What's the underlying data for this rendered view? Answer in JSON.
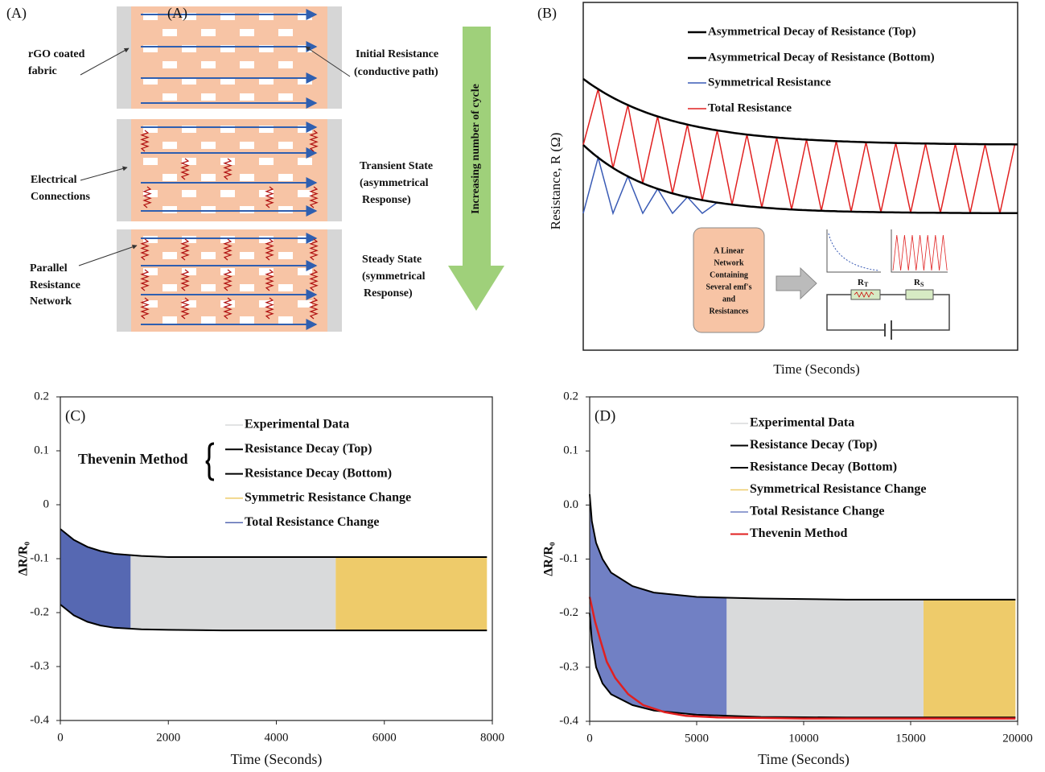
{
  "panel_a": {
    "labels": [
      "(A)",
      "(A)"
    ],
    "rgo": [
      "rGO coated",
      "fabric"
    ],
    "initial": [
      "Initial Resistance",
      "(conductive path)"
    ],
    "connections": [
      "Electrical",
      "Connections"
    ],
    "transient": [
      "Transient State",
      "(asymmetrical",
      "Response)"
    ],
    "parallel": [
      "Parallel",
      "Resistance",
      "Network"
    ],
    "steady": [
      "Steady State",
      "(symmetrical",
      "Response)"
    ],
    "arrow": "Increasing number of cycle"
  },
  "panel_b": {
    "label": "(B)",
    "legend": [
      "Asymmetrical Decay of Resistance (Top)",
      "Asymmetrical Decay of Resistance (Bottom)",
      "Symmetrical Resistance",
      "Total Resistance"
    ],
    "ylabel": "Resistance, R (Ω)",
    "xlabel": "Time (Seconds)",
    "box": [
      "A Linear",
      "Network",
      "Containing",
      "Several emf's",
      "and",
      "Resistances"
    ],
    "rt": [
      "R",
      "T"
    ],
    "rs": [
      "R",
      "S"
    ]
  },
  "chart_data": [
    {
      "type": "line",
      "panel_label": "(C)",
      "annotation": "Thevenin Method",
      "xlabel": "Time (Seconds)",
      "ylabel": "ΔR/R₀",
      "xlim": [
        0,
        8000
      ],
      "xticks": [
        0,
        2000,
        4000,
        6000,
        8000
      ],
      "ylim": [
        -0.4,
        0.2
      ],
      "yticks": [
        0.2,
        0.1,
        0,
        -0.1,
        -0.2,
        -0.3,
        -0.4
      ],
      "series": [
        {
          "name": "Experimental Data",
          "color": "#d9dadb",
          "style": "band",
          "x": [
            1300,
            5100
          ]
        },
        {
          "name": "Resistance Decay (Top)",
          "color": "#000000",
          "style": "line",
          "x": [
            0,
            250,
            500,
            750,
            1000,
            1500,
            2000,
            3000,
            5000,
            7900
          ],
          "values": [
            -0.045,
            -0.065,
            -0.078,
            -0.086,
            -0.091,
            -0.095,
            -0.097,
            -0.097,
            -0.097,
            -0.097
          ]
        },
        {
          "name": "Resistance Decay (Bottom)",
          "color": "#000000",
          "style": "line",
          "x": [
            0,
            250,
            500,
            750,
            1000,
            1500,
            2000,
            3000,
            5000,
            7900
          ],
          "values": [
            -0.185,
            -0.205,
            -0.217,
            -0.224,
            -0.228,
            -0.231,
            -0.232,
            -0.233,
            -0.233,
            -0.233
          ]
        },
        {
          "name": "Symmetric Resistance Change",
          "color": "#eecb6a",
          "style": "band",
          "x": [
            5100,
            7900
          ]
        },
        {
          "name": "Total Resistance Change",
          "color": "#5668b2",
          "style": "band",
          "x": [
            0,
            1300
          ]
        }
      ]
    },
    {
      "type": "line",
      "panel_label": "(D)",
      "xlabel": "Time (Seconds)",
      "ylabel": "ΔR/R₀",
      "xlim": [
        0,
        20000
      ],
      "xticks": [
        0,
        5000,
        10000,
        15000,
        20000
      ],
      "ylim": [
        -0.4,
        0.2
      ],
      "yticks": [
        0.2,
        0.1,
        {
          "value": 0,
          "label": "0.0"
        },
        -0.1,
        -0.2,
        -0.3,
        -0.4
      ],
      "series": [
        {
          "name": "Experimental Data",
          "color": "#d9dadb",
          "style": "band",
          "x": [
            6400,
            15600
          ]
        },
        {
          "name": "Resistance Decay (Top)",
          "color": "#000000",
          "style": "line",
          "x": [
            0,
            100,
            300,
            600,
            1000,
            2000,
            3000,
            5000,
            8000,
            12000,
            19900
          ],
          "values": [
            0.02,
            -0.03,
            -0.07,
            -0.1,
            -0.125,
            -0.15,
            -0.162,
            -0.17,
            -0.173,
            -0.175,
            -0.175
          ]
        },
        {
          "name": "Resistance Decay (Bottom)",
          "color": "#000000",
          "style": "line",
          "x": [
            0,
            100,
            300,
            600,
            1000,
            2000,
            3000,
            5000,
            8000,
            12000,
            19900
          ],
          "values": [
            -0.2,
            -0.25,
            -0.3,
            -0.33,
            -0.35,
            -0.37,
            -0.38,
            -0.388,
            -0.392,
            -0.393,
            -0.393
          ]
        },
        {
          "name": "Symmetrical Resistance Change",
          "color": "#eecb6a",
          "style": "band",
          "x": [
            15600,
            19900
          ]
        },
        {
          "name": "Total Resistance Change",
          "color": "#7180c4",
          "style": "band",
          "x": [
            0,
            6400
          ]
        },
        {
          "name": "Thevenin Method",
          "color": "#e02020",
          "style": "line",
          "x": [
            0,
            250,
            500,
            800,
            1200,
            1800,
            2500,
            3500,
            4500,
            6000,
            10000,
            19900
          ],
          "values": [
            -0.17,
            -0.215,
            -0.25,
            -0.29,
            -0.32,
            -0.35,
            -0.37,
            -0.383,
            -0.39,
            -0.393,
            -0.395,
            -0.395
          ]
        }
      ]
    }
  ]
}
